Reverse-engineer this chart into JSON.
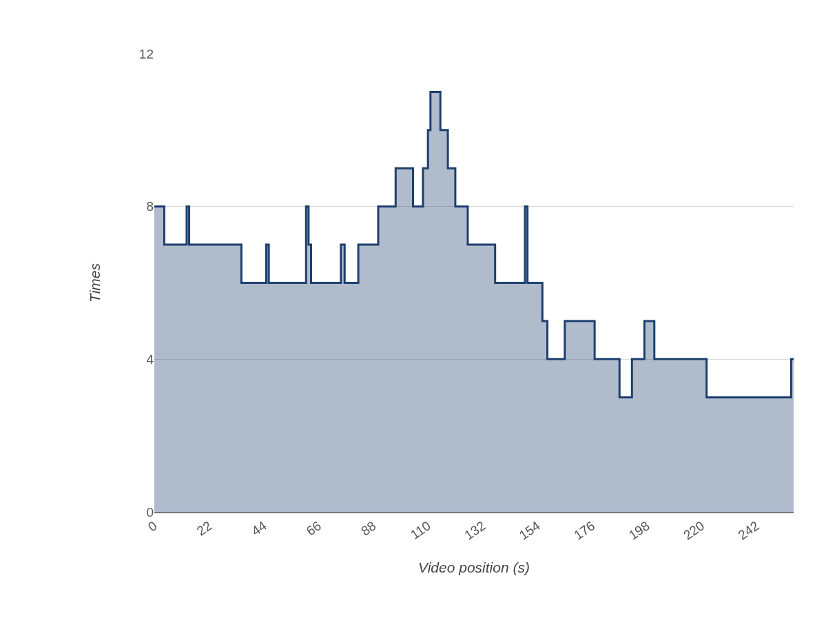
{
  "chart_data": {
    "type": "area",
    "xlabel": "Video position (s)",
    "ylabel": "Times",
    "x": [
      0,
      4,
      4,
      13,
      13,
      14,
      14,
      35,
      35,
      45,
      45,
      46,
      46,
      61,
      61,
      62,
      62,
      63,
      63,
      75,
      75,
      76.5,
      76.5,
      82,
      82,
      90,
      90,
      97,
      97,
      104,
      104,
      108,
      108,
      110,
      110,
      111,
      111,
      115,
      115,
      118,
      118,
      121,
      121,
      126,
      126,
      137,
      137,
      149,
      149,
      150,
      150,
      156,
      156,
      158,
      158,
      165,
      165,
      177,
      177,
      187,
      187,
      192,
      192,
      197,
      197,
      201,
      201,
      222,
      222,
      256,
      256,
      257
    ],
    "series": [
      {
        "color": "#1c3f6e",
        "values": [
          8,
          8,
          7,
          7,
          8,
          8,
          7,
          7,
          6,
          6,
          7,
          7,
          6,
          6,
          8,
          8,
          7,
          7,
          6,
          6,
          7,
          7,
          6,
          6,
          7,
          7,
          8,
          8,
          9,
          9,
          8,
          8,
          9,
          9,
          10,
          10,
          11,
          11,
          10,
          10,
          9,
          9,
          8,
          8,
          7,
          7,
          6,
          6,
          8,
          8,
          6,
          6,
          5,
          5,
          4,
          4,
          5,
          5,
          4,
          4,
          3,
          3,
          4,
          4,
          5,
          5,
          4,
          4,
          3,
          3,
          4,
          4
        ]
      }
    ],
    "xlim": [
      0,
      257
    ],
    "xticks": [
      0,
      22,
      44,
      66,
      88,
      110,
      132,
      154,
      176,
      198,
      220,
      242
    ],
    "ylim": [
      0,
      12
    ],
    "yticks": [
      0,
      4,
      8,
      12
    ],
    "grid": "y"
  }
}
